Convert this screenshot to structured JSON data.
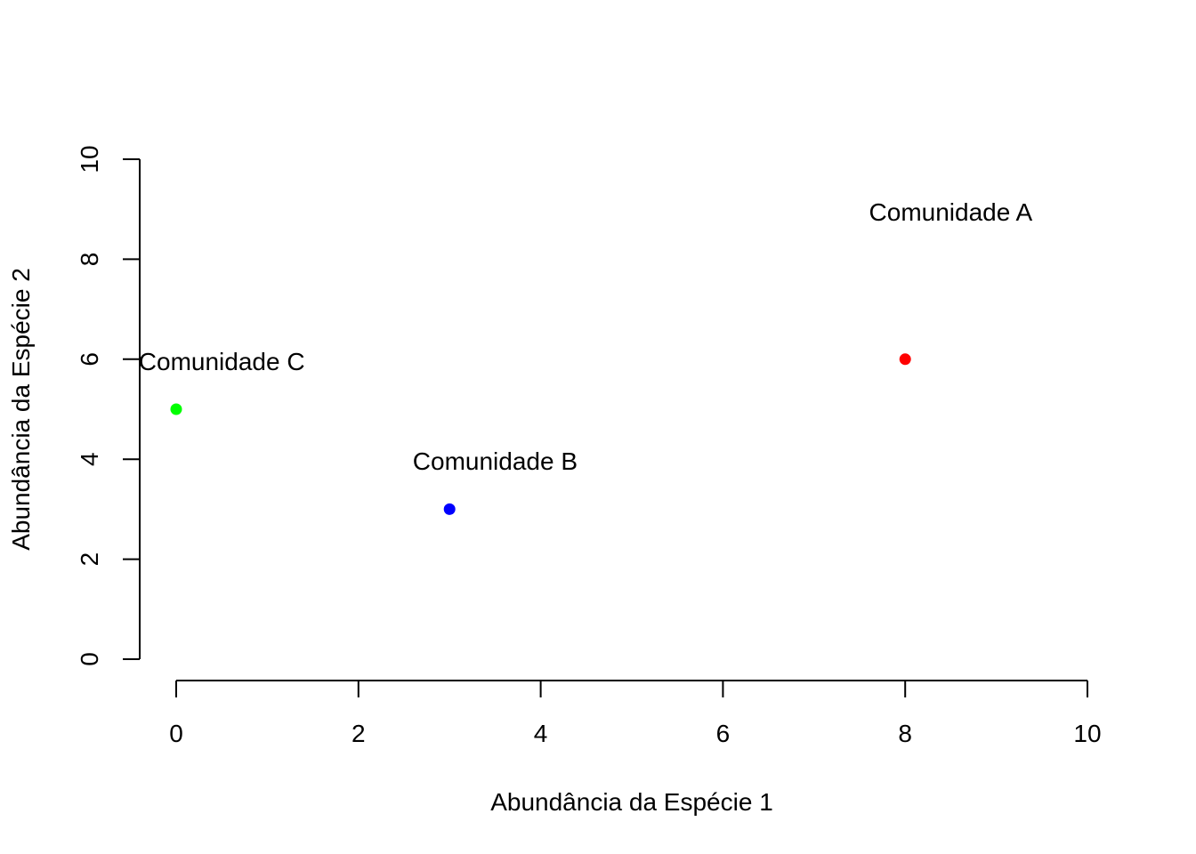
{
  "chart_data": {
    "type": "scatter",
    "title": "",
    "xlabel": "Abundância da Espécie 1",
    "ylabel": "Abundância da Espécie 2",
    "xlim": [
      0,
      10
    ],
    "ylim": [
      0,
      10
    ],
    "x_ticks": [
      "0",
      "2",
      "4",
      "6",
      "8",
      "10"
    ],
    "y_ticks": [
      "0",
      "2",
      "4",
      "6",
      "8",
      "10"
    ],
    "grid": false,
    "points": [
      {
        "label": "Comunidade A",
        "x": 8,
        "y": 6,
        "color": "#ff0000"
      },
      {
        "label": "Comunidade B",
        "x": 3,
        "y": 3,
        "color": "#0000ff"
      },
      {
        "label": "Comunidade C",
        "x": 0,
        "y": 5,
        "color": "#00ff00"
      }
    ]
  }
}
